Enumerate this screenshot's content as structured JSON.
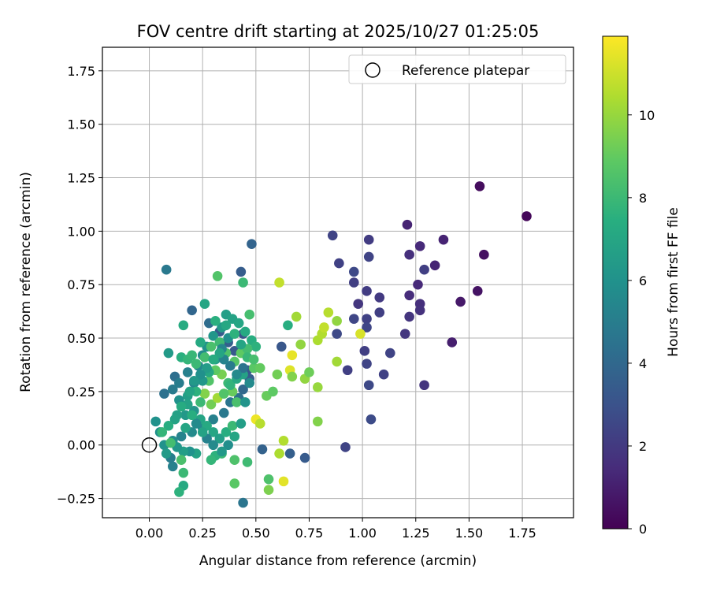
{
  "chart_data": {
    "type": "scatter",
    "title": "FOV centre drift starting at 2025/10/27 01:25:05",
    "xlabel": "Angular distance from reference (arcmin)",
    "ylabel": "Rotation from reference (arcmin)",
    "xlim": [
      -0.22,
      1.99
    ],
    "ylim": [
      -0.34,
      1.86
    ],
    "xticks": [
      0.0,
      0.25,
      0.5,
      0.75,
      1.0,
      1.25,
      1.5,
      1.75
    ],
    "xtick_labels": [
      "0.00",
      "0.25",
      "0.50",
      "0.75",
      "1.00",
      "1.25",
      "1.50",
      "1.75"
    ],
    "yticks": [
      -0.25,
      0.0,
      0.25,
      0.5,
      0.75,
      1.0,
      1.25,
      1.5,
      1.75
    ],
    "ytick_labels": [
      "−0.25",
      "0.00",
      "0.25",
      "0.50",
      "0.75",
      "1.00",
      "1.25",
      "1.50",
      "1.75"
    ],
    "grid": true,
    "legend": {
      "label": "Reference platepar",
      "location": "top-right"
    },
    "reference_point": {
      "x": 0.0,
      "y": 0.0
    },
    "colorbar": {
      "label": "Hours from first FF file",
      "range": [
        0,
        11.9
      ],
      "ticks": [
        0,
        2,
        4,
        6,
        8,
        10
      ],
      "tick_labels": [
        "0",
        "2",
        "4",
        "6",
        "8",
        "10"
      ],
      "colormap": "viridis"
    },
    "series": [
      {
        "name": "FOV centre",
        "points": [
          [
            1.77,
            1.07,
            0.2
          ],
          [
            1.55,
            1.21,
            0.4
          ],
          [
            1.57,
            0.89,
            0.5
          ],
          [
            1.54,
            0.72,
            0.6
          ],
          [
            1.46,
            0.67,
            0.8
          ],
          [
            1.42,
            0.48,
            1.0
          ],
          [
            1.38,
            0.96,
            1.2
          ],
          [
            1.34,
            0.84,
            1.2
          ],
          [
            1.27,
            0.93,
            1.4
          ],
          [
            1.21,
            1.03,
            1.2
          ],
          [
            1.22,
            0.89,
            1.6
          ],
          [
            1.26,
            0.75,
            1.4
          ],
          [
            1.22,
            0.7,
            1.5
          ],
          [
            1.27,
            0.66,
            1.6
          ],
          [
            1.27,
            0.63,
            1.7
          ],
          [
            1.22,
            0.6,
            1.8
          ],
          [
            1.2,
            0.52,
            1.9
          ],
          [
            1.29,
            0.82,
            2.2
          ],
          [
            1.29,
            0.28,
            1.8
          ],
          [
            1.13,
            0.43,
            2.4
          ],
          [
            1.1,
            0.33,
            2.3
          ],
          [
            1.08,
            0.69,
            2.0
          ],
          [
            1.08,
            0.62,
            2.2
          ],
          [
            1.03,
            0.96,
            2.1
          ],
          [
            1.03,
            0.88,
            2.4
          ],
          [
            1.02,
            0.72,
            2.1
          ],
          [
            1.02,
            0.59,
            2.3
          ],
          [
            1.02,
            0.55,
            2.5
          ],
          [
            1.01,
            0.44,
            2.2
          ],
          [
            1.02,
            0.38,
            2.4
          ],
          [
            1.03,
            0.28,
            2.6
          ],
          [
            1.04,
            0.12,
            2.7
          ],
          [
            0.98,
            0.66,
            1.9
          ],
          [
            0.96,
            0.76,
            2.2
          ],
          [
            0.96,
            0.81,
            2.6
          ],
          [
            0.96,
            0.59,
            2.5
          ],
          [
            0.93,
            0.35,
            2.2
          ],
          [
            0.92,
            -0.01,
            2.4
          ],
          [
            0.89,
            0.85,
            2.3
          ],
          [
            0.86,
            0.98,
            2.4
          ],
          [
            0.88,
            0.52,
            2.6
          ],
          [
            0.62,
            0.46,
            3.2
          ],
          [
            0.73,
            -0.06,
            3.4
          ],
          [
            0.66,
            -0.04,
            3.6
          ],
          [
            0.53,
            -0.02,
            3.7
          ],
          [
            0.48,
            0.94,
            3.8
          ],
          [
            0.43,
            0.81,
            3.5
          ],
          [
            0.44,
            -0.27,
            4.6
          ],
          [
            0.08,
            0.82,
            4.8
          ],
          [
            0.2,
            0.63,
            3.9
          ],
          [
            0.28,
            0.57,
            4.2
          ],
          [
            0.33,
            0.53,
            3.4
          ],
          [
            0.37,
            0.48,
            3.6
          ],
          [
            0.4,
            0.44,
            3.3
          ],
          [
            0.44,
            0.52,
            3.0
          ],
          [
            0.46,
            0.35,
            3.2
          ],
          [
            0.47,
            0.31,
            3.5
          ],
          [
            0.44,
            0.26,
            4.0
          ],
          [
            0.42,
            0.22,
            4.3
          ],
          [
            0.38,
            0.2,
            4.6
          ],
          [
            0.35,
            0.15,
            4.8
          ],
          [
            0.3,
            0.12,
            5.2
          ],
          [
            0.25,
            0.08,
            5.4
          ],
          [
            0.2,
            0.06,
            5.6
          ],
          [
            0.15,
            0.04,
            5.3
          ],
          [
            0.11,
            0.02,
            5.8
          ],
          [
            0.07,
            0.0,
            6.0
          ],
          [
            0.05,
            0.06,
            5.9
          ],
          [
            0.03,
            0.11,
            6.0
          ],
          [
            0.07,
            0.24,
            4.4
          ],
          [
            0.11,
            0.26,
            4.9
          ],
          [
            0.12,
            0.32,
            4.3
          ],
          [
            0.14,
            0.29,
            5.0
          ],
          [
            0.18,
            0.34,
            5.2
          ],
          [
            0.21,
            0.29,
            5.4
          ],
          [
            0.23,
            0.37,
            5.5
          ],
          [
            0.25,
            0.42,
            5.7
          ],
          [
            0.27,
            0.46,
            6.0
          ],
          [
            0.3,
            0.51,
            6.2
          ],
          [
            0.34,
            0.55,
            6.4
          ],
          [
            0.36,
            0.61,
            6.6
          ],
          [
            0.39,
            0.59,
            6.8
          ],
          [
            0.42,
            0.57,
            7.0
          ],
          [
            0.45,
            0.53,
            7.2
          ],
          [
            0.48,
            0.49,
            7.4
          ],
          [
            0.5,
            0.46,
            7.6
          ],
          [
            0.47,
            0.61,
            8.3
          ],
          [
            0.44,
            0.76,
            8.0
          ],
          [
            0.32,
            0.79,
            8.6
          ],
          [
            0.26,
            0.66,
            7.0
          ],
          [
            0.16,
            0.56,
            7.3
          ],
          [
            0.09,
            0.43,
            6.4
          ],
          [
            0.15,
            0.41,
            7.5
          ],
          [
            0.18,
            0.4,
            7.8
          ],
          [
            0.22,
            0.38,
            8.0
          ],
          [
            0.26,
            0.41,
            8.2
          ],
          [
            0.29,
            0.46,
            8.4
          ],
          [
            0.33,
            0.48,
            8.1
          ],
          [
            0.36,
            0.43,
            8.5
          ],
          [
            0.4,
            0.39,
            8.7
          ],
          [
            0.43,
            0.43,
            8.9
          ],
          [
            0.46,
            0.45,
            8.2
          ],
          [
            0.49,
            0.36,
            8.8
          ],
          [
            0.52,
            0.36,
            9.0
          ],
          [
            0.55,
            0.23,
            9.1
          ],
          [
            0.58,
            0.25,
            8.9
          ],
          [
            0.6,
            0.33,
            9.3
          ],
          [
            0.65,
            0.56,
            7.4
          ],
          [
            0.69,
            0.6,
            10.2
          ],
          [
            0.66,
            0.35,
            11.3
          ],
          [
            0.67,
            0.42,
            11.5
          ],
          [
            0.71,
            0.47,
            9.9
          ],
          [
            0.67,
            0.32,
            9.6
          ],
          [
            0.73,
            0.31,
            9.9
          ],
          [
            0.75,
            0.34,
            9.2
          ],
          [
            0.79,
            0.27,
            10.0
          ],
          [
            0.79,
            0.11,
            9.6
          ],
          [
            0.79,
            0.49,
            10.4
          ],
          [
            0.81,
            0.52,
            10.5
          ],
          [
            0.82,
            0.55,
            10.8
          ],
          [
            0.84,
            0.62,
            10.6
          ],
          [
            0.88,
            0.58,
            9.9
          ],
          [
            0.88,
            0.39,
            10.2
          ],
          [
            0.99,
            0.52,
            11.2
          ],
          [
            0.61,
            0.76,
            10.8
          ],
          [
            0.63,
            0.02,
            10.5
          ],
          [
            0.63,
            -0.17,
            11.4
          ],
          [
            0.61,
            -0.04,
            10.4
          ],
          [
            0.56,
            -0.16,
            8.5
          ],
          [
            0.56,
            -0.21,
            9.5
          ],
          [
            0.5,
            0.12,
            11.6
          ],
          [
            0.52,
            0.1,
            10.6
          ],
          [
            0.46,
            -0.08,
            8.1
          ],
          [
            0.4,
            -0.18,
            8.8
          ],
          [
            0.4,
            -0.07,
            8.5
          ],
          [
            0.34,
            -0.04,
            8.0
          ],
          [
            0.31,
            -0.05,
            7.6
          ],
          [
            0.29,
            -0.07,
            7.8
          ],
          [
            0.22,
            -0.04,
            6.8
          ],
          [
            0.19,
            -0.03,
            6.0
          ],
          [
            0.16,
            -0.03,
            6.6
          ],
          [
            0.15,
            -0.07,
            8.4
          ],
          [
            0.16,
            -0.13,
            8.0
          ],
          [
            0.16,
            -0.19,
            7.2
          ],
          [
            0.14,
            -0.22,
            7.6
          ],
          [
            0.11,
            -0.1,
            5.2
          ],
          [
            0.1,
            -0.06,
            5.0
          ],
          [
            0.08,
            -0.04,
            6.4
          ],
          [
            0.13,
            -0.01,
            6.2
          ],
          [
            0.1,
            0.01,
            8.2
          ],
          [
            0.17,
            0.08,
            7.0
          ],
          [
            0.17,
            0.14,
            6.3
          ],
          [
            0.13,
            0.14,
            6.7
          ],
          [
            0.14,
            0.21,
            6.0
          ],
          [
            0.18,
            0.23,
            6.6
          ],
          [
            0.21,
            0.16,
            6.1
          ],
          [
            0.24,
            0.12,
            6.9
          ],
          [
            0.27,
            0.09,
            7.2
          ],
          [
            0.3,
            0.06,
            7.0
          ],
          [
            0.33,
            0.03,
            6.6
          ],
          [
            0.36,
            0.06,
            7.4
          ],
          [
            0.39,
            0.09,
            8.0
          ],
          [
            0.41,
            0.2,
            8.4
          ],
          [
            0.39,
            0.25,
            9.1
          ],
          [
            0.37,
            0.29,
            8.0
          ],
          [
            0.34,
            0.33,
            9.4
          ],
          [
            0.31,
            0.35,
            8.9
          ],
          [
            0.28,
            0.3,
            8.6
          ],
          [
            0.26,
            0.24,
            9.6
          ],
          [
            0.24,
            0.2,
            8.0
          ],
          [
            0.29,
            0.19,
            9.3
          ],
          [
            0.32,
            0.22,
            10.2
          ],
          [
            0.35,
            0.24,
            8.6
          ],
          [
            0.38,
            0.28,
            7.7
          ],
          [
            0.41,
            0.31,
            7.2
          ],
          [
            0.44,
            0.33,
            6.8
          ],
          [
            0.47,
            0.29,
            5.6
          ],
          [
            0.45,
            0.2,
            6.1
          ],
          [
            0.43,
            0.1,
            6.6
          ],
          [
            0.4,
            0.04,
            7.0
          ],
          [
            0.37,
            0.0,
            5.8
          ],
          [
            0.34,
            -0.03,
            6.3
          ],
          [
            0.3,
            0.0,
            5.6
          ],
          [
            0.27,
            0.03,
            5.2
          ],
          [
            0.25,
            0.06,
            6.8
          ],
          [
            0.22,
            0.1,
            5.6
          ],
          [
            0.2,
            0.14,
            7.4
          ],
          [
            0.18,
            0.19,
            6.8
          ],
          [
            0.22,
            0.25,
            7.6
          ],
          [
            0.25,
            0.3,
            6.2
          ],
          [
            0.28,
            0.34,
            7.1
          ],
          [
            0.31,
            0.4,
            6.5
          ],
          [
            0.34,
            0.45,
            5.4
          ],
          [
            0.37,
            0.5,
            5.9
          ],
          [
            0.4,
            0.52,
            7.6
          ],
          [
            0.43,
            0.47,
            6.9
          ],
          [
            0.46,
            0.41,
            7.9
          ],
          [
            0.49,
            0.4,
            8.3
          ],
          [
            0.44,
            0.36,
            4.5
          ],
          [
            0.41,
            0.33,
            5.6
          ],
          [
            0.38,
            0.37,
            4.9
          ],
          [
            0.35,
            0.4,
            5.3
          ],
          [
            0.33,
            0.43,
            6.9
          ],
          [
            0.3,
            0.4,
            7.3
          ],
          [
            0.27,
            0.36,
            6.5
          ],
          [
            0.24,
            0.33,
            5.9
          ],
          [
            0.21,
            0.3,
            6.3
          ],
          [
            0.19,
            0.25,
            6.9
          ],
          [
            0.15,
            0.18,
            7.3
          ],
          [
            0.12,
            0.12,
            6.8
          ],
          [
            0.09,
            0.09,
            7.4
          ],
          [
            0.06,
            0.06,
            7.8
          ],
          [
            0.2,
            0.42,
            7.9
          ],
          [
            0.24,
            0.48,
            7.2
          ],
          [
            0.36,
            0.56,
            7.1
          ],
          [
            0.31,
            0.58,
            7.5
          ]
        ]
      }
    ]
  }
}
